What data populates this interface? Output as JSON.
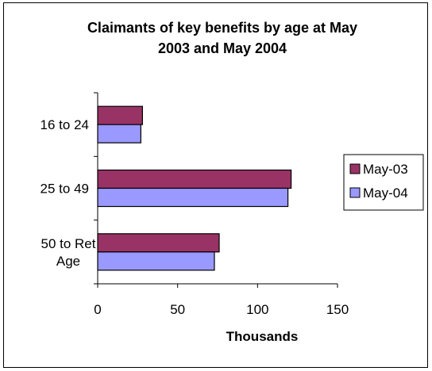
{
  "chart_data": {
    "type": "bar",
    "orientation": "horizontal",
    "title": "Claimants of key benefits by age at May\n2003 and May 2004",
    "xlabel": "Thousands",
    "ylabel": "",
    "categories": [
      "16 to 24",
      "25 to 49",
      "50 to Ret\nAge"
    ],
    "series": [
      {
        "name": "May-03",
        "values": [
          28,
          121,
          76
        ],
        "color": "#993366"
      },
      {
        "name": "May-04",
        "values": [
          27,
          119,
          73
        ],
        "color": "#9999ff"
      }
    ],
    "xlim": [
      0,
      150
    ],
    "x_ticks": [
      0,
      50,
      100,
      150
    ],
    "grid": false,
    "legend": "right"
  }
}
